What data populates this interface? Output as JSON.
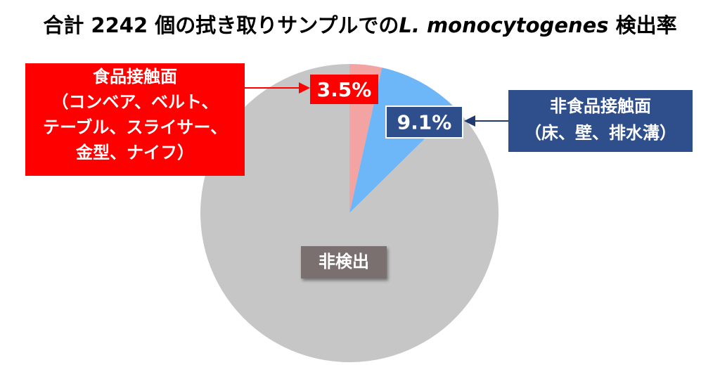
{
  "chart_data": {
    "type": "pie",
    "title_parts": [
      "合計 2242 個の拭き取りサンプルでの",
      "L. monocytogenes",
      " 検出率"
    ],
    "categories": [
      "食品接触面",
      "非食品接触面",
      "非検出"
    ],
    "category_notes": [
      [
        "（コンベア、ベルト、",
        "テーブル、スライサー、",
        "金型、ナイフ）"
      ],
      [
        "（床、壁、排水溝）"
      ]
    ],
    "values": [
      3.5,
      9.1,
      87.4
    ],
    "value_labels": [
      "3.5%",
      "9.1%",
      null
    ],
    "colors": [
      "#f4a3a3",
      "#6db6f7",
      "#c6c6c6"
    ],
    "label_colors": [
      "#ff0000",
      "#2e4f8c",
      "#7a6f6f"
    ]
  }
}
